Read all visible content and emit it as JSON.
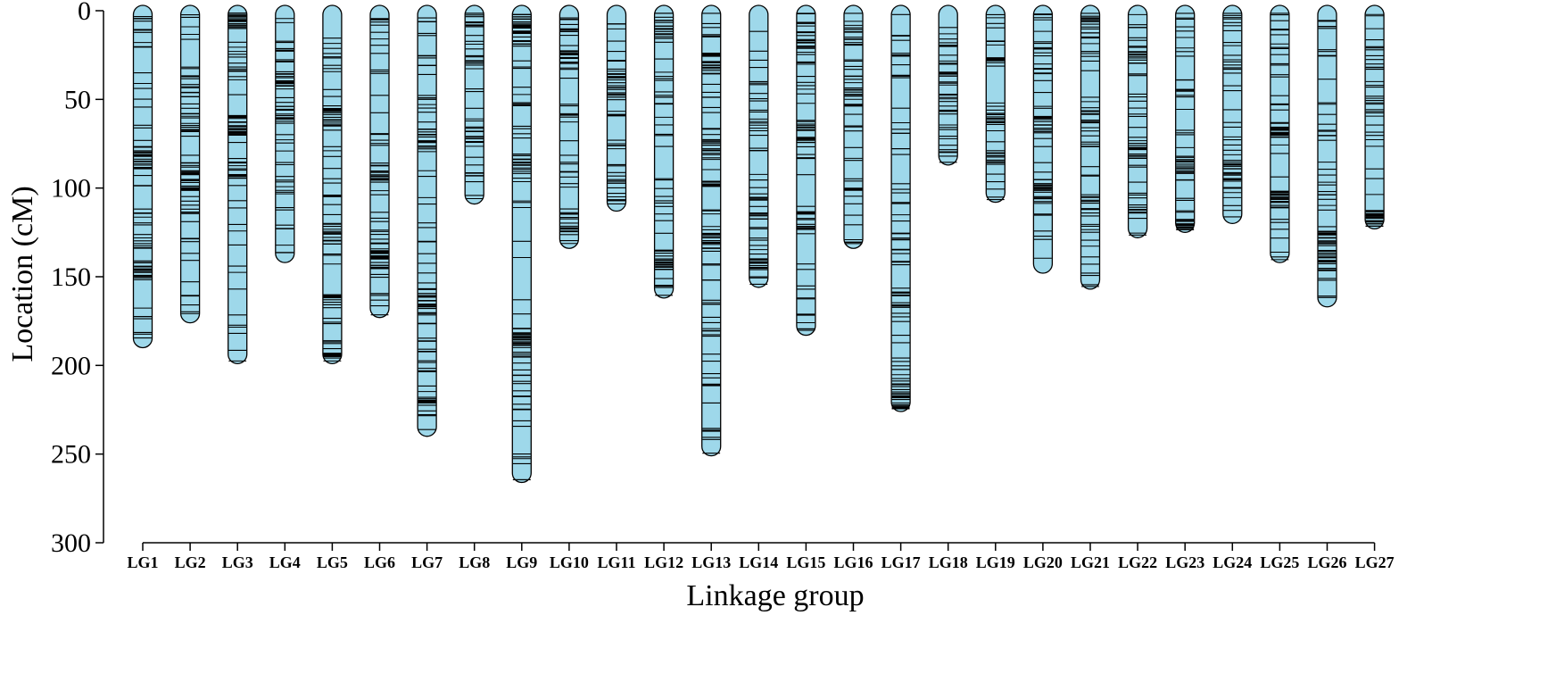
{
  "chart_data": {
    "type": "linkage_map",
    "xlabel": "Linkage group",
    "ylabel": "Location (cM)",
    "ylim": [
      0,
      300
    ],
    "yticks": [
      0,
      50,
      100,
      150,
      200,
      250,
      300
    ],
    "bar_color": "#9ed8ea",
    "marker_color": "#000000",
    "groups": [
      {
        "name": "LG1",
        "length": 190
      },
      {
        "name": "LG2",
        "length": 176
      },
      {
        "name": "LG3",
        "length": 199
      },
      {
        "name": "LG4",
        "length": 142
      },
      {
        "name": "LG5",
        "length": 199
      },
      {
        "name": "LG6",
        "length": 173
      },
      {
        "name": "LG7",
        "length": 240
      },
      {
        "name": "LG8",
        "length": 109
      },
      {
        "name": "LG9",
        "length": 266
      },
      {
        "name": "LG10",
        "length": 134
      },
      {
        "name": "LG11",
        "length": 113
      },
      {
        "name": "LG12",
        "length": 162
      },
      {
        "name": "LG13",
        "length": 251
      },
      {
        "name": "LG14",
        "length": 156
      },
      {
        "name": "LG15",
        "length": 183
      },
      {
        "name": "LG16",
        "length": 134
      },
      {
        "name": "LG17",
        "length": 226
      },
      {
        "name": "LG18",
        "length": 87
      },
      {
        "name": "LG19",
        "length": 108
      },
      {
        "name": "LG20",
        "length": 148
      },
      {
        "name": "LG21",
        "length": 157
      },
      {
        "name": "LG22",
        "length": 128
      },
      {
        "name": "LG23",
        "length": 125
      },
      {
        "name": "LG24",
        "length": 120
      },
      {
        "name": "LG25",
        "length": 142
      },
      {
        "name": "LG26",
        "length": 167
      },
      {
        "name": "LG27",
        "length": 123
      }
    ]
  }
}
